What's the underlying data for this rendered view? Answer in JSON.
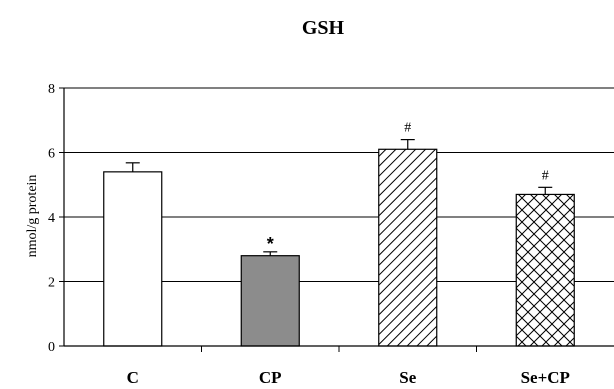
{
  "chart_data": {
    "type": "bar",
    "title": "GSH",
    "ylabel": "nmol/g protein",
    "xlabel": "",
    "categories": [
      "C",
      "CP",
      "Se",
      "Se+CP"
    ],
    "values": [
      5.4,
      2.8,
      6.1,
      4.7
    ],
    "errors": [
      0.28,
      0.12,
      0.3,
      0.22
    ],
    "annotations": [
      "",
      "*",
      "#",
      "#"
    ],
    "fills": [
      "white",
      "gray",
      "diagonal-hatch",
      "cross-hatch"
    ],
    "bar_colors": [
      "#ffffff",
      "#8c8c8c",
      "#ffffff",
      "#ffffff"
    ],
    "ylim": [
      0,
      8
    ],
    "yticks": [
      0,
      2,
      4,
      6,
      8
    ],
    "grid": true
  }
}
